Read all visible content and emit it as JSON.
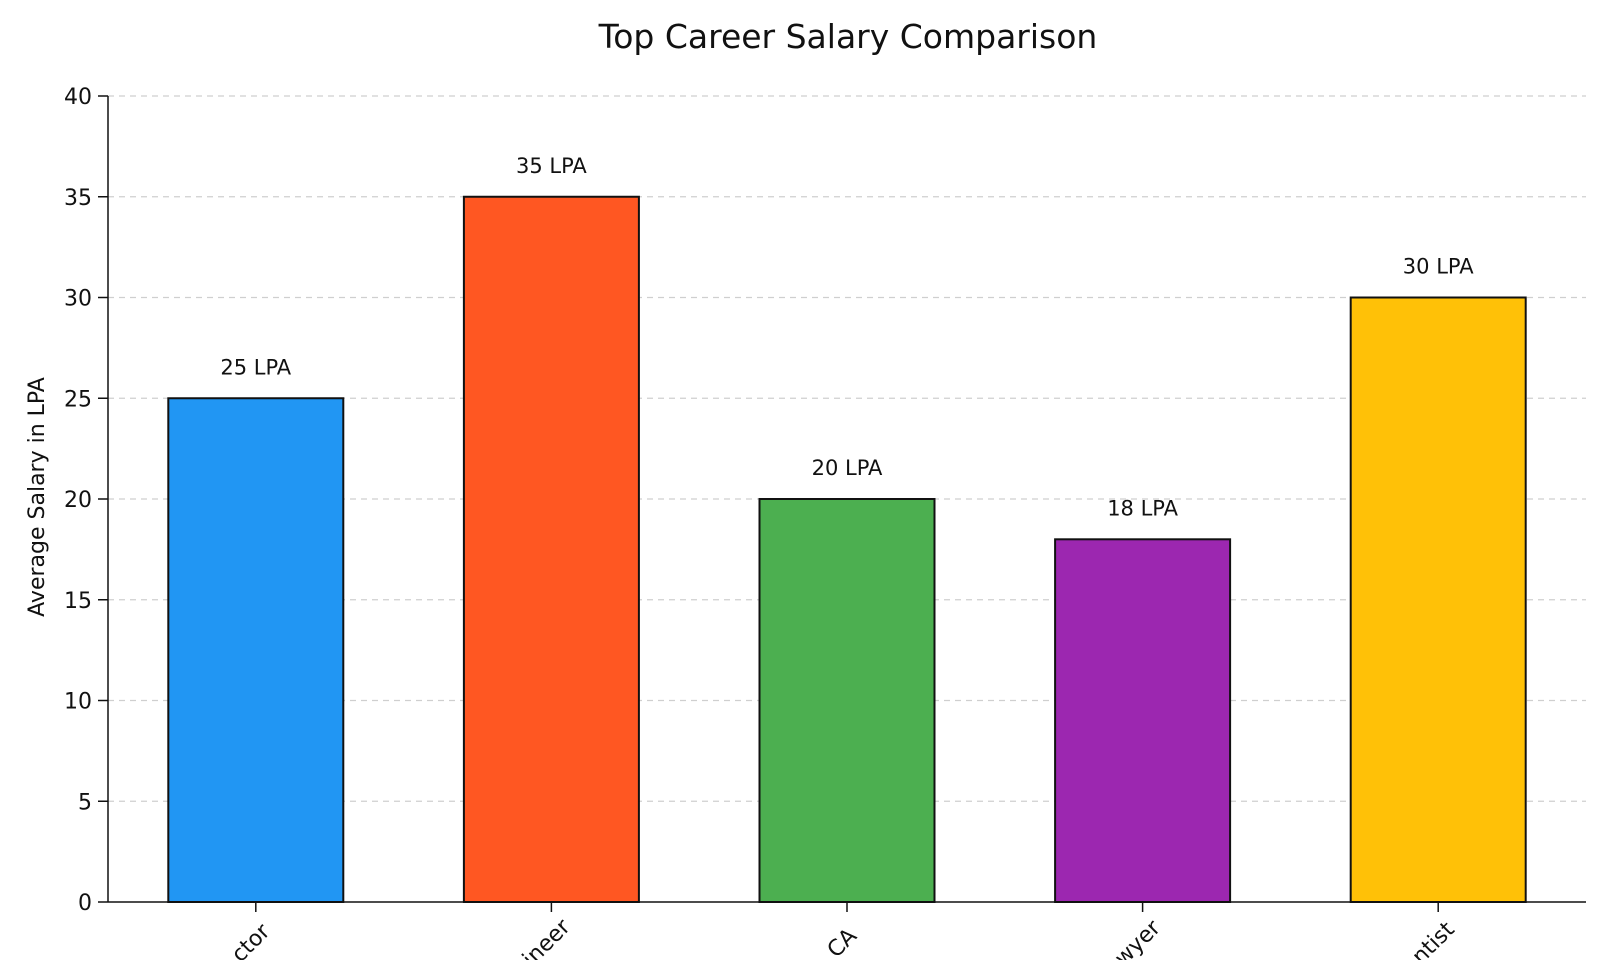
{
  "chart_data": {
    "type": "bar",
    "title": "Top Career Salary Comparison",
    "xlabel": "",
    "ylabel": "Average Salary in LPA",
    "ylim": [
      0,
      40
    ],
    "yticks": [
      0,
      5,
      10,
      15,
      20,
      25,
      30,
      35,
      40
    ],
    "grid": true,
    "categories": [
      "ctor",
      "ineer",
      "CA",
      "wyer",
      "ntist"
    ],
    "values": [
      25,
      35,
      20,
      18,
      30
    ],
    "bar_labels": [
      "25 LPA",
      "35 LPA",
      "20 LPA",
      "18 LPA",
      "30 LPA"
    ],
    "colors": [
      "#2196F3",
      "#FF5722",
      "#4CAF50",
      "#9C27B0",
      "#FFC107"
    ]
  }
}
